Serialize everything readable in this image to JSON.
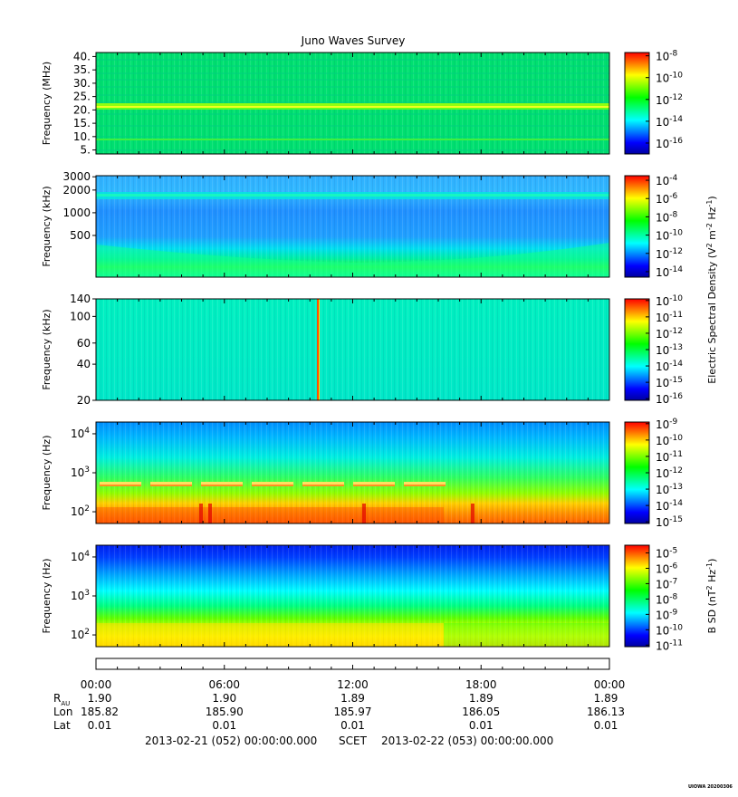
{
  "title": "Juno Waves Survey",
  "colormap": [
    "#0000a0",
    "#0000ff",
    "#0080ff",
    "#00ffff",
    "#00ff80",
    "#00ff00",
    "#80ff00",
    "#ffff00",
    "#ff8000",
    "#ff0000"
  ],
  "chart_data": [
    {
      "type": "heatmap",
      "name": "panel-1",
      "ylabel": "Frequency (MHz)",
      "yticks": [
        "40.",
        "35.",
        "30.",
        "25.",
        "20.",
        "15.",
        "10.",
        "5."
      ],
      "yvals": [
        40,
        35,
        30,
        25,
        20,
        15,
        10,
        5
      ],
      "ylim": [
        3.5,
        41.5
      ],
      "yscale": "linear",
      "colorbar": {
        "labels": [
          -8,
          -10,
          -12,
          -14,
          -16
        ],
        "range": [
          -17,
          -7.7
        ]
      },
      "colorbar_title": ""
    },
    {
      "type": "heatmap",
      "name": "panel-2",
      "ylabel": "Frequency (kHz)",
      "yticks": [
        "3000",
        "2000",
        "1000",
        "500"
      ],
      "yvals": [
        3000,
        2000,
        1000,
        500
      ],
      "ylim": [
        140,
        3100
      ],
      "yscale": "log",
      "colorbar": {
        "labels": [
          -4,
          -6,
          -8,
          -10,
          -12,
          -14
        ],
        "range": [
          -14.6,
          -3.5
        ]
      },
      "colorbar_title": "Electric Spectral Density (V^2 m^-2 Hz^-1)"
    },
    {
      "type": "heatmap",
      "name": "panel-3",
      "ylabel": "Frequency (kHz)",
      "yticks": [
        "140",
        "100",
        "60",
        "40",
        "20"
      ],
      "yvals": [
        140,
        100,
        60,
        40,
        20
      ],
      "ylim": [
        20,
        140
      ],
      "yscale": "log",
      "colorbar": {
        "labels": [
          -10,
          -11,
          -12,
          -13,
          -14,
          -15,
          -16
        ],
        "range": [
          -16.1,
          -9.9
        ]
      },
      "colorbar_title": ""
    },
    {
      "type": "heatmap",
      "name": "panel-4",
      "ylabel": "Frequency (Hz)",
      "yticks": [
        "4",
        "3",
        "2"
      ],
      "yvals": [
        10000,
        1000,
        100
      ],
      "ylim": [
        50,
        20000
      ],
      "yscale": "log",
      "colorbar": {
        "labels": [
          -9,
          -10,
          -11,
          -12,
          -13,
          -14,
          -15
        ],
        "range": [
          -15.1,
          -8.9
        ]
      },
      "colorbar_title": ""
    },
    {
      "type": "heatmap",
      "name": "panel-5",
      "ylabel": "Frequency (Hz)",
      "yticks": [
        "4",
        "3",
        "2"
      ],
      "yvals": [
        10000,
        1000,
        100
      ],
      "ylim": [
        50,
        20000
      ],
      "yscale": "log",
      "colorbar": {
        "labels": [
          -5,
          -6,
          -7,
          -8,
          -9,
          -10,
          -11
        ],
        "range": [
          -11.1,
          -4.5
        ]
      },
      "colorbar_title": "B SD (nT^2 Hz^-1)"
    }
  ],
  "xaxis": {
    "ticks": [
      "00:00",
      "06:00",
      "12:00",
      "18:00",
      "00:00"
    ],
    "rows": [
      {
        "label": "R",
        "sub": "AU",
        "values": [
          "1.90",
          "1.90",
          "1.89",
          "1.89",
          "1.89"
        ]
      },
      {
        "label": "Lon",
        "sub": "",
        "values": [
          "185.82",
          "185.90",
          "185.97",
          "186.05",
          "186.13"
        ]
      },
      {
        "label": "Lat",
        "sub": "",
        "values": [
          "0.01",
          "0.01",
          "0.01",
          "0.01",
          "0.01"
        ]
      }
    ],
    "date_left": "2013-02-21 (052) 00:00:00.000",
    "scet": "SCET",
    "date_right": "2013-02-22 (053) 00:00:00.000"
  },
  "footer_stamp": "UIOWA 20200306"
}
